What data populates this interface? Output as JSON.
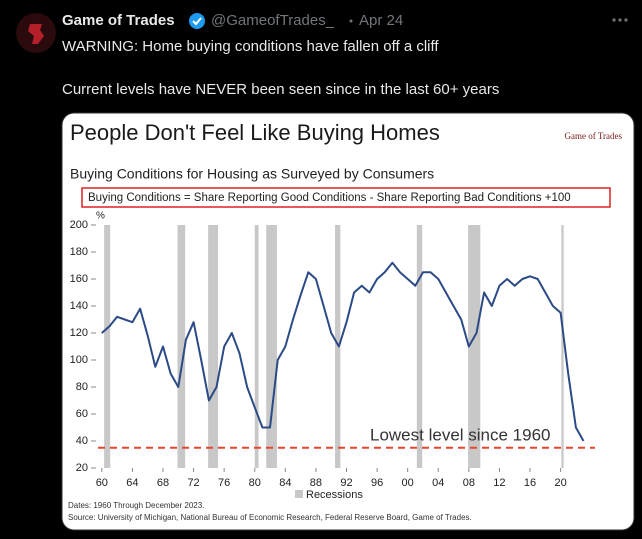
{
  "tweet": {
    "author": "Game of Trades",
    "handle": "@GameofTrades_",
    "date": "Apr 24",
    "lines": [
      "WARNING: Home buying conditions have fallen off a cliff",
      "Current levels have NEVER been seen since in the last 60+ years"
    ]
  },
  "chart_data": {
    "type": "line",
    "title": "People Don't Feel Like Buying Homes",
    "subtitle": "Buying Conditions for Housing as Surveyed by Consumers",
    "formula": "Buying Conditions = Share Reporting Good Conditions - Share Reporting Bad Conditions +100",
    "logo": "Game of Trades",
    "y_unit": "%",
    "x": [
      1960,
      1961,
      1962,
      1963,
      1964,
      1965,
      1966,
      1967,
      1968,
      1969,
      1970,
      1971,
      1972,
      1973,
      1974,
      1975,
      1976,
      1977,
      1978,
      1979,
      1980,
      1981,
      1982,
      1983,
      1984,
      1985,
      1986,
      1987,
      1988,
      1989,
      1990,
      1991,
      1992,
      1993,
      1994,
      1995,
      1996,
      1997,
      1998,
      1999,
      2000,
      2001,
      2002,
      2003,
      2004,
      2005,
      2006,
      2007,
      2008,
      2009,
      2010,
      2011,
      2012,
      2013,
      2014,
      2015,
      2016,
      2017,
      2018,
      2019,
      2020,
      2021,
      2022,
      2023
    ],
    "values": [
      120,
      125,
      132,
      130,
      128,
      138,
      118,
      95,
      110,
      90,
      80,
      115,
      128,
      100,
      70,
      80,
      110,
      120,
      105,
      80,
      65,
      50,
      50,
      100,
      110,
      130,
      148,
      165,
      160,
      140,
      120,
      110,
      128,
      150,
      155,
      150,
      160,
      165,
      172,
      165,
      160,
      155,
      165,
      165,
      160,
      150,
      140,
      130,
      110,
      120,
      150,
      140,
      155,
      160,
      155,
      160,
      162,
      160,
      150,
      140,
      135,
      90,
      50,
      40
    ],
    "color": "#2b4a86",
    "xlim": [
      1959.5,
      2024.5
    ],
    "ylim": [
      20,
      200
    ],
    "xticks": [
      {
        "value": 1960,
        "label": "60"
      },
      {
        "value": 1964,
        "label": "64"
      },
      {
        "value": 1968,
        "label": "68"
      },
      {
        "value": 1972,
        "label": "72"
      },
      {
        "value": 1976,
        "label": "76"
      },
      {
        "value": 1980,
        "label": "80"
      },
      {
        "value": 1984,
        "label": "84"
      },
      {
        "value": 1988,
        "label": "88"
      },
      {
        "value": 1992,
        "label": "92"
      },
      {
        "value": 1996,
        "label": "96"
      },
      {
        "value": 2000,
        "label": "00"
      },
      {
        "value": 2004,
        "label": "04"
      },
      {
        "value": 2008,
        "label": "08"
      },
      {
        "value": 2012,
        "label": "12"
      },
      {
        "value": 2016,
        "label": "16"
      },
      {
        "value": 2020,
        "label": "20"
      }
    ],
    "yticks": [
      20,
      40,
      60,
      80,
      100,
      120,
      140,
      160,
      180,
      200
    ],
    "recessions": [
      [
        1960.3,
        1961.1
      ],
      [
        1969.9,
        1970.9
      ],
      [
        1973.9,
        1975.2
      ],
      [
        1980.0,
        1980.5
      ],
      [
        1981.5,
        1982.9
      ],
      [
        1990.5,
        1991.2
      ],
      [
        2001.2,
        2001.9
      ],
      [
        2007.9,
        2009.5
      ],
      [
        2020.1,
        2020.4
      ]
    ],
    "recession_label": "Recessions",
    "recession_color": "#c8c8c8",
    "reference_line": {
      "value": 35,
      "label": "Lowest level since 1960",
      "color": "#e8452f"
    },
    "notes": [
      "Dates: 1960 Through December 2023.",
      "Source: University of Michigan, National Bureau of Economic Research, Federal Reserve Board, Game of Trades."
    ]
  }
}
